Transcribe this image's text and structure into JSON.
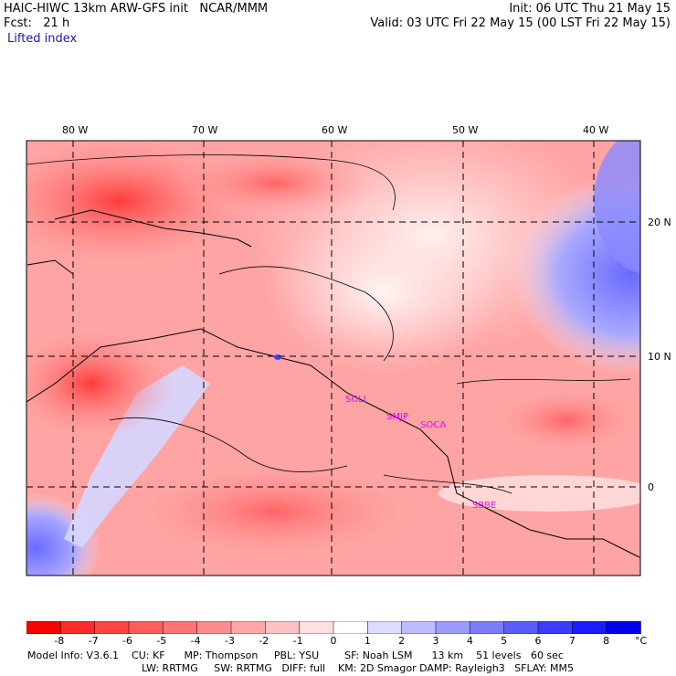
{
  "header": {
    "line1_left": "HAIC-HIWC 13km ARW-GFS init   NCAR/MMM",
    "line1_right": "Init: 06 UTC Thu 21 May 15",
    "line2_left": "Fcst:   21 h",
    "line2_right": "Valid: 03 UTC Fri 22 May 15 (00 LST Fri 22 May 15)",
    "field_name": "Lifted index"
  },
  "map": {
    "lon_labels": [
      "80 W",
      "70 W",
      "60 W",
      "50 W",
      "40 W"
    ],
    "lat_labels": [
      "20 N",
      "10 N",
      "0"
    ],
    "stations": [
      "SOLI",
      "SMJP",
      "SOCA",
      "SBBE"
    ],
    "station_color": "#ff00ff"
  },
  "colorbar": {
    "tick_labels": [
      "-8",
      "-7",
      "-6",
      "-5",
      "-4",
      "-3",
      "-2",
      "-1",
      "0",
      "1",
      "2",
      "3",
      "4",
      "5",
      "6",
      "7",
      "8"
    ],
    "unit": "°C",
    "colors": [
      "#ff0000",
      "#ff2a2a",
      "#ff4444",
      "#ff5c5c",
      "#ff7474",
      "#ff8c8c",
      "#ffa6a6",
      "#ffc2c2",
      "#ffe0e0",
      "#ffffff",
      "#dcdcff",
      "#bcbcff",
      "#9c9cff",
      "#7c7cff",
      "#5c5cff",
      "#3c3cff",
      "#1c1cff",
      "#0000ee"
    ]
  },
  "model_info": {
    "line1": "Model Info: V3.6.1    CU: KF      MP: Thompson     PBL: YSU        SF: Noah LSM      13 km    51 levels   60 sec",
    "line2": "LW: RRTMG     SW: RRTMG   DIFF: full    KM: 2D Smagor DAMP: Rayleigh3   SFLAY: MM5"
  }
}
